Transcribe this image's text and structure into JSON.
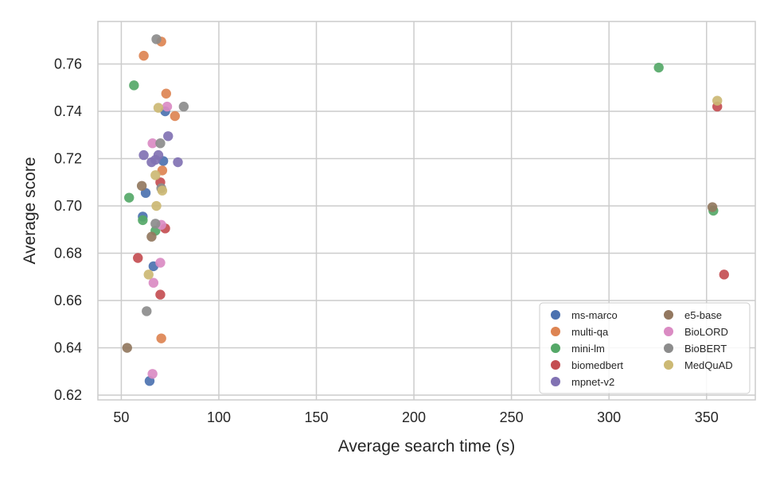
{
  "chart_data": {
    "type": "scatter",
    "xlabel": "Average search time (s)",
    "ylabel": "Average score",
    "xlim": [
      38,
      375
    ],
    "ylim": [
      0.618,
      0.778
    ],
    "xticks": [
      "50",
      "100",
      "150",
      "200",
      "250",
      "300",
      "350"
    ],
    "xtick_values": [
      50,
      100,
      150,
      200,
      250,
      300,
      350
    ],
    "yticks": [
      "0.62",
      "0.64",
      "0.66",
      "0.68",
      "0.70",
      "0.72",
      "0.74",
      "0.76"
    ],
    "ytick_values": [
      0.62,
      0.64,
      0.66,
      0.68,
      0.7,
      0.72,
      0.74,
      0.76
    ],
    "grid": true,
    "legend_position": "bottom-right",
    "legend_columns": 2,
    "series": [
      {
        "name": "ms-marco",
        "color": "#4c72b0",
        "points": [
          [
            72.5,
            0.74
          ],
          [
            71.5,
            0.719
          ],
          [
            62.5,
            0.7055
          ],
          [
            61,
            0.6955
          ],
          [
            66.5,
            0.6745
          ],
          [
            64.5,
            0.626
          ]
        ]
      },
      {
        "name": "multi-qa",
        "color": "#dd8452",
        "points": [
          [
            70.5,
            0.7695
          ],
          [
            61.5,
            0.7635
          ],
          [
            73,
            0.7475
          ],
          [
            77.5,
            0.738
          ],
          [
            71,
            0.715
          ],
          [
            70.5,
            0.644
          ]
        ]
      },
      {
        "name": "mini-lm",
        "color": "#55a868",
        "points": [
          [
            56.5,
            0.751
          ],
          [
            54,
            0.7035
          ],
          [
            61,
            0.694
          ],
          [
            67.5,
            0.6895
          ],
          [
            325.5,
            0.7585
          ],
          [
            353.5,
            0.698
          ]
        ]
      },
      {
        "name": "biomedbert",
        "color": "#c44e52",
        "points": [
          [
            70,
            0.71
          ],
          [
            72.5,
            0.6905
          ],
          [
            58.5,
            0.678
          ],
          [
            70,
            0.6625
          ],
          [
            355.5,
            0.742
          ],
          [
            359,
            0.671
          ]
        ]
      },
      {
        "name": "mpnet-v2",
        "color": "#8172b3",
        "points": [
          [
            74,
            0.7295
          ],
          [
            69,
            0.7215
          ],
          [
            61.5,
            0.7215
          ],
          [
            79,
            0.7185
          ],
          [
            65.5,
            0.7185
          ],
          [
            67.5,
            0.7195
          ]
        ]
      },
      {
        "name": "e5-base",
        "color": "#937860",
        "points": [
          [
            60.5,
            0.7085
          ],
          [
            65.5,
            0.687
          ],
          [
            53,
            0.64
          ],
          [
            353,
            0.6995
          ]
        ]
      },
      {
        "name": "BioLORD",
        "color": "#da8bc3",
        "points": [
          [
            73.5,
            0.742
          ],
          [
            66,
            0.7265
          ],
          [
            70.5,
            0.692
          ],
          [
            70,
            0.676
          ],
          [
            66.5,
            0.6675
          ],
          [
            66,
            0.629
          ]
        ]
      },
      {
        "name": "BioBERT",
        "color": "#8c8c8c",
        "points": [
          [
            68,
            0.7705
          ],
          [
            82,
            0.742
          ],
          [
            70,
            0.7265
          ],
          [
            70.5,
            0.7075
          ],
          [
            67.5,
            0.6925
          ],
          [
            63,
            0.6555
          ]
        ]
      },
      {
        "name": "MedQuAD",
        "color": "#ccb974",
        "points": [
          [
            69,
            0.7415
          ],
          [
            67.5,
            0.713
          ],
          [
            71,
            0.7065
          ],
          [
            68,
            0.7
          ],
          [
            64,
            0.671
          ],
          [
            355.5,
            0.7445
          ]
        ]
      }
    ]
  }
}
